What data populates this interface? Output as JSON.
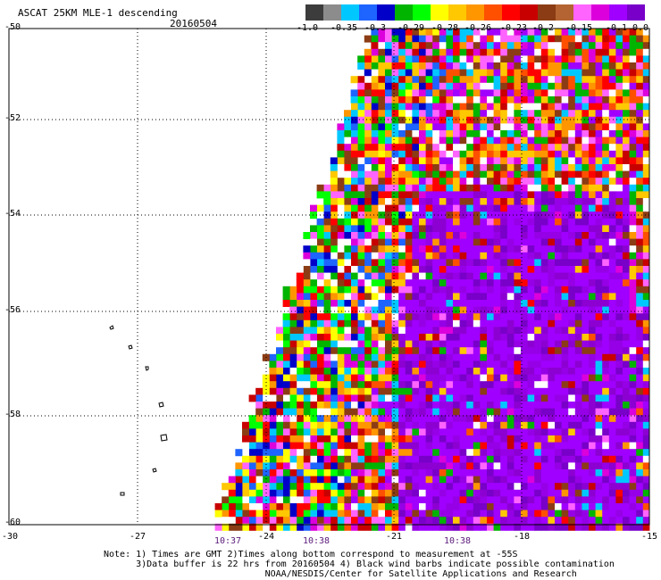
{
  "header": {
    "title": "ASCAT 25KM MLE-1 descending",
    "date": "20160504"
  },
  "colorbar": {
    "labels": [
      "-1.0",
      "-0.35",
      "-0.3",
      "-0.29",
      "-0.28",
      "-0.26",
      "-0.23",
      "-0.2",
      "-0.15",
      "-0.1",
      "0.0"
    ],
    "colors": [
      "#3c3c3c",
      "#8c8c8c",
      "#00c8ff",
      "#1e64ff",
      "#0000c8",
      "#00b400",
      "#00ff00",
      "#ffff00",
      "#ffc800",
      "#ff9600",
      "#ff5000",
      "#ff0000",
      "#c80000",
      "#8c3c14",
      "#b46432",
      "#ff64ff",
      "#dc00dc",
      "#a000ff",
      "#7800c8"
    ]
  },
  "map": {
    "lat_labels": [
      "-50",
      "-52",
      "-54",
      "-56",
      "-58",
      "-60"
    ],
    "lon_labels": [
      "-30",
      "-27",
      "-24",
      "-21",
      "-18",
      "-15"
    ],
    "time_labels": [
      "10:37",
      "10:38",
      "10:38"
    ]
  },
  "notes": {
    "line1": "Note: 1) Times are GMT 2)Times along bottom correspond to measurement at -55S",
    "line2": "      3)Data buffer is 22 hrs from 20160504 4) Black wind barbs indicate possible contamination",
    "line3": "                              NOAA/NESDIS/Center for Satellite Applications and Research"
  }
}
